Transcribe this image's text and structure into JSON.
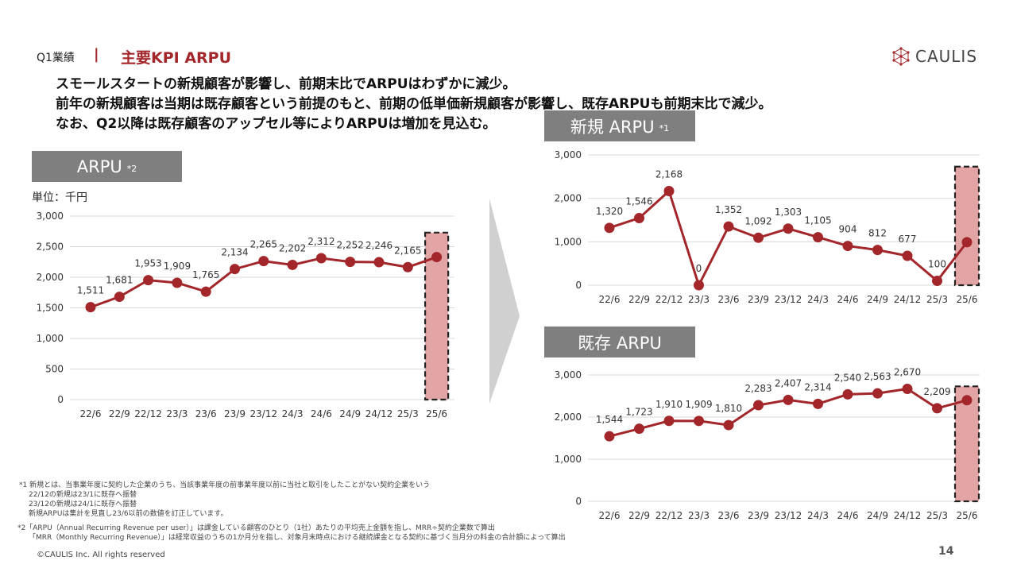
{
  "header": {
    "section": "Q1業績",
    "separator": "|",
    "title": "主要KPI ARPU",
    "logo_text": "CAULIS",
    "logo_icon": "network-icon",
    "accent_color": "#a3262a"
  },
  "headlines": [
    "スモールスタートの新規顧客が影響し、前期末比でARPUはわずかに減少。",
    "前年の新規顧客は当期は既存顧客という前提のもと、前期の低単価新規顧客が影響し、既存ARPUも前期末比で減少。",
    "なお、Q2以降は既存顧客のアップセル等によりARPUは増加を見込む。"
  ],
  "unit_label": "単位：千円",
  "footnotes": [
    "*1 新規とは、当事業年度に契約した企業のうち、当該事業年度の前事業年度以前に当社と取引をしたことがない契約企業をいう",
    "22/12の新規は23/1に既存へ振替",
    "23/12の新規は24/1に既存へ振替",
    "新規ARPUは集計を見直し23/6以前の数値を訂正しています。",
    "*2「ARPU（Annual Recurring Revenue per user）」は課金している顧客のひとり（1社）あたりの平均売上金額を指し、MRR÷契約企業数で算出",
    "「MRR（Monthly Recurring Revenue）」は経常収益のうちの1か月分を指し、対象月末時点における継続課金となる契約に基づく当月分の料金の合計額によって算出"
  ],
  "copyright": "©CAULIS Inc. All rights reserved",
  "page_number": "14",
  "chart_data": [
    {
      "id": "arpu",
      "type": "line",
      "title": "ARPU",
      "title_note": "*2",
      "categories": [
        "22/6",
        "22/9",
        "22/12",
        "23/3",
        "23/6",
        "23/9",
        "23/12",
        "24/3",
        "24/6",
        "24/9",
        "24/12",
        "25/3",
        "25/6"
      ],
      "values": [
        1511,
        1681,
        1953,
        1909,
        1765,
        2134,
        2265,
        2202,
        2312,
        2252,
        2246,
        2165,
        2330
      ],
      "data_labels": [
        "1,511",
        "1,681",
        "1,953",
        "1,909",
        "1,765",
        "2,134",
        "2,265",
        "2,202",
        "2,312",
        "2,252",
        "2,246",
        "2,165",
        ""
      ],
      "ylim": [
        0,
        3000
      ],
      "yticks": [
        0,
        500,
        1000,
        1500,
        2000,
        2500,
        3000
      ],
      "ytick_labels": [
        "0",
        "500",
        "1,000",
        "1,500",
        "2,000",
        "2,500",
        "3,000"
      ],
      "grid": true,
      "line_color": "#a3262a",
      "highlight_category": "25/6",
      "highlight_color": "#e3a4a6"
    },
    {
      "id": "new",
      "type": "line",
      "title": "新規 ARPU",
      "title_note": "*1",
      "categories": [
        "22/6",
        "22/9",
        "22/12",
        "23/3",
        "23/6",
        "23/9",
        "23/12",
        "24/3",
        "24/6",
        "24/9",
        "24/12",
        "25/3",
        "25/6"
      ],
      "values": [
        1320,
        1546,
        2168,
        0,
        1352,
        1092,
        1303,
        1105,
        904,
        812,
        677,
        100,
        990
      ],
      "data_labels": [
        "1,320",
        "1,546",
        "2,168",
        "0",
        "1,352",
        "1,092",
        "1,303",
        "1,105",
        "904",
        "812",
        "677",
        "100",
        ""
      ],
      "ylim": [
        0,
        3000
      ],
      "yticks": [
        0,
        1000,
        2000,
        3000
      ],
      "ytick_labels": [
        "0",
        "1,000",
        "2,000",
        "3,000"
      ],
      "grid": true,
      "line_color": "#a3262a",
      "highlight_category": "25/6",
      "highlight_color": "#e3a4a6"
    },
    {
      "id": "existing",
      "type": "line",
      "title": "既存 ARPU",
      "title_note": "",
      "categories": [
        "22/6",
        "22/9",
        "22/12",
        "23/3",
        "23/6",
        "23/9",
        "23/12",
        "24/3",
        "24/6",
        "24/9",
        "24/12",
        "25/3",
        "25/6"
      ],
      "values": [
        1544,
        1723,
        1910,
        1909,
        1810,
        2283,
        2407,
        2314,
        2540,
        2563,
        2670,
        2209,
        2400
      ],
      "data_labels": [
        "1,544",
        "1,723",
        "1,910",
        "1,909",
        "1,810",
        "2,283",
        "2,407",
        "2,314",
        "2,540",
        "2,563",
        "2,670",
        "2,209",
        ""
      ],
      "ylim": [
        0,
        3000
      ],
      "yticks": [
        0,
        1000,
        2000,
        3000
      ],
      "ytick_labels": [
        "0",
        "1,000",
        "2,000",
        "3,000"
      ],
      "grid": true,
      "line_color": "#a3262a",
      "highlight_category": "25/6",
      "highlight_color": "#e3a4a6"
    }
  ]
}
